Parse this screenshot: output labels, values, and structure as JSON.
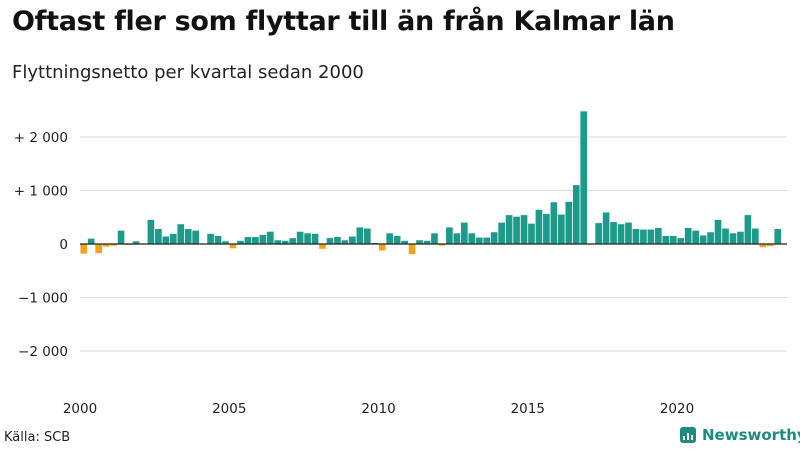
{
  "title": "Oftast fler som flyttar till än från Kalmar län",
  "subtitle": "Flyttningsnetto per kvartal sedan 2000",
  "source": "Källa: SCB",
  "brand": "Newsworthy",
  "colors": {
    "positive": "#1d9a8a",
    "negative": "#f0a31c",
    "zero_line": "#222222",
    "grid": "#d9d9d9"
  },
  "chart_data": {
    "type": "bar",
    "title": "Oftast fler som flyttar till än från Kalmar län",
    "subtitle": "Flyttningsnetto per kvartal sedan 2000",
    "xlabel": "",
    "ylabel": "",
    "ylim": [
      -2500,
      2500
    ],
    "grid": true,
    "y_ticks": [
      {
        "value": 2000,
        "label": "+ 2 000"
      },
      {
        "value": 1000,
        "label": "+ 1 000"
      },
      {
        "value": 0,
        "label": "0"
      },
      {
        "value": -1000,
        "label": "−1 000"
      },
      {
        "value": -2000,
        "label": "−2 000"
      }
    ],
    "x_ticks": [
      {
        "year": 2000,
        "label": "2000"
      },
      {
        "year": 2005,
        "label": "2005"
      },
      {
        "year": 2010,
        "label": "2010"
      },
      {
        "year": 2015,
        "label": "2015"
      },
      {
        "year": 2020,
        "label": "2020"
      }
    ],
    "start_year": 2000,
    "values": [
      -180,
      100,
      -170,
      -50,
      -30,
      250,
      -20,
      50,
      -10,
      450,
      280,
      140,
      190,
      370,
      280,
      250,
      -10,
      190,
      150,
      50,
      -80,
      60,
      130,
      130,
      170,
      230,
      70,
      60,
      110,
      230,
      200,
      190,
      -90,
      110,
      130,
      70,
      140,
      310,
      290,
      20,
      -120,
      200,
      150,
      60,
      -190,
      70,
      60,
      200,
      -30,
      310,
      200,
      400,
      200,
      120,
      120,
      220,
      400,
      540,
      510,
      540,
      380,
      640,
      560,
      780,
      550,
      790,
      1100,
      2480,
      -10,
      390,
      590,
      410,
      370,
      400,
      280,
      270,
      270,
      300,
      150,
      150,
      110,
      300,
      250,
      160,
      220,
      450,
      290,
      200,
      230,
      540,
      290,
      -60,
      -40,
      280
    ]
  }
}
